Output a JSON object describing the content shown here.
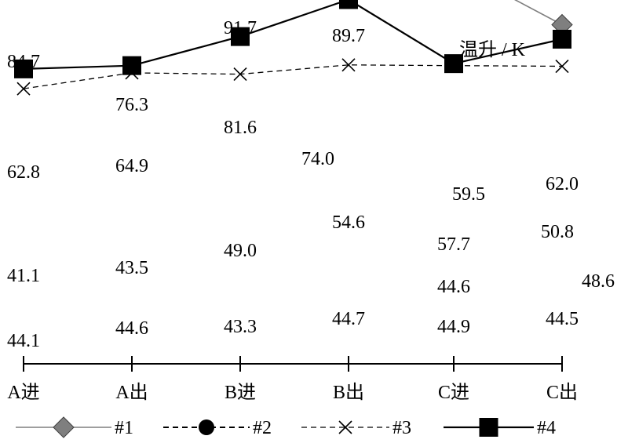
{
  "chart_data": {
    "type": "line",
    "title": "",
    "xlabel": "",
    "ylabel": "温升 / K",
    "categories": [
      "A进",
      "A出",
      "B进",
      "B出",
      "C进",
      "C出"
    ],
    "ylim": [
      35,
      95
    ],
    "grid": false,
    "legend_position": "bottom",
    "series": [
      {
        "name": "#1",
        "values": [
          84.7,
          76.3,
          81.6,
          89.7,
          59.5,
          50.8
        ],
        "line": "solid",
        "marker": "diamond",
        "color": "#7f7f7f",
        "marker_color": "#7f7f7f"
      },
      {
        "name": "#2",
        "values": [
          62.8,
          64.9,
          91.7,
          74.0,
          57.7,
          62.0
        ],
        "line": "dashed",
        "marker": "circle",
        "color": "#000000",
        "marker_color": "#000000"
      },
      {
        "name": "#3",
        "values": [
          41.1,
          43.5,
          43.3,
          44.7,
          44.6,
          44.5
        ],
        "line": "dashed-thin",
        "marker": "x",
        "color": "#000000",
        "marker_color": "#000000"
      },
      {
        "name": "#4",
        "values": [
          44.1,
          44.6,
          49.0,
          54.6,
          44.9,
          48.6
        ],
        "line": "solid",
        "marker": "square",
        "color": "#000000",
        "marker_color": "#000000"
      }
    ],
    "data_labels": [
      [
        "84.7",
        "76.3",
        "81.6",
        "89.7",
        "59.5",
        "50.8"
      ],
      [
        "62.8",
        "64.9",
        "91.7",
        "74.0",
        "57.7",
        "62.0"
      ],
      [
        "41.1",
        "43.5",
        "43.3",
        "44.7",
        "44.6",
        "44.5"
      ],
      [
        "44.1",
        "44.6",
        "49.0",
        "54.6",
        "44.9",
        "48.6"
      ]
    ]
  }
}
